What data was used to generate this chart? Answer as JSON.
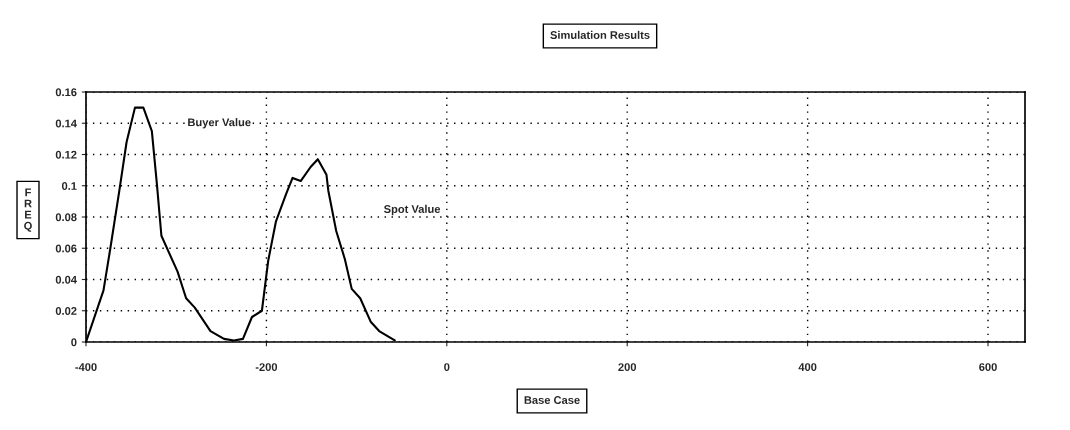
{
  "chart_data": {
    "type": "line",
    "title": "Simulation Results",
    "xlabel": "Base Case",
    "ylabel": "FREQ",
    "xlim": [
      -400,
      641
    ],
    "xticks": [
      -400,
      -200,
      0,
      200,
      400,
      600
    ],
    "ylim": [
      0,
      0.16
    ],
    "yticks": [
      0,
      0.02,
      0.04,
      0.06,
      0.08,
      0.1,
      0.12,
      0.14,
      0.16
    ],
    "grid": true,
    "legend": false,
    "annotations": [
      "Buyer Value",
      "Spot Value"
    ],
    "series": [
      {
        "color": "#000000",
        "x": [
          -400,
          -380.6,
          -373,
          -363,
          -355,
          -345.7,
          -336.4,
          -327,
          -321.4,
          -316.4,
          -298.5,
          -289,
          -279.4,
          -262,
          -247,
          -236,
          -226,
          -216,
          -205,
          -198,
          -189.5,
          -178,
          -171,
          -162,
          -151,
          -143,
          -133.4,
          -131.4,
          -122.6,
          -113,
          -105.4,
          -96,
          -84.4,
          -75,
          -57.7
        ],
        "values": [
          0,
          0.033,
          0.06,
          0.097,
          0.128,
          0.15,
          0.15,
          0.135,
          0.101,
          0.068,
          0.045,
          0.028,
          0.022,
          0.007,
          0.002,
          0.001,
          0.002,
          0.016,
          0.02,
          0.052,
          0.077,
          0.095,
          0.105,
          0.103,
          0.112,
          0.117,
          0.107,
          0.097,
          0.071,
          0.053,
          0.034,
          0.028,
          0.013,
          0.007,
          0.001
        ]
      }
    ]
  }
}
